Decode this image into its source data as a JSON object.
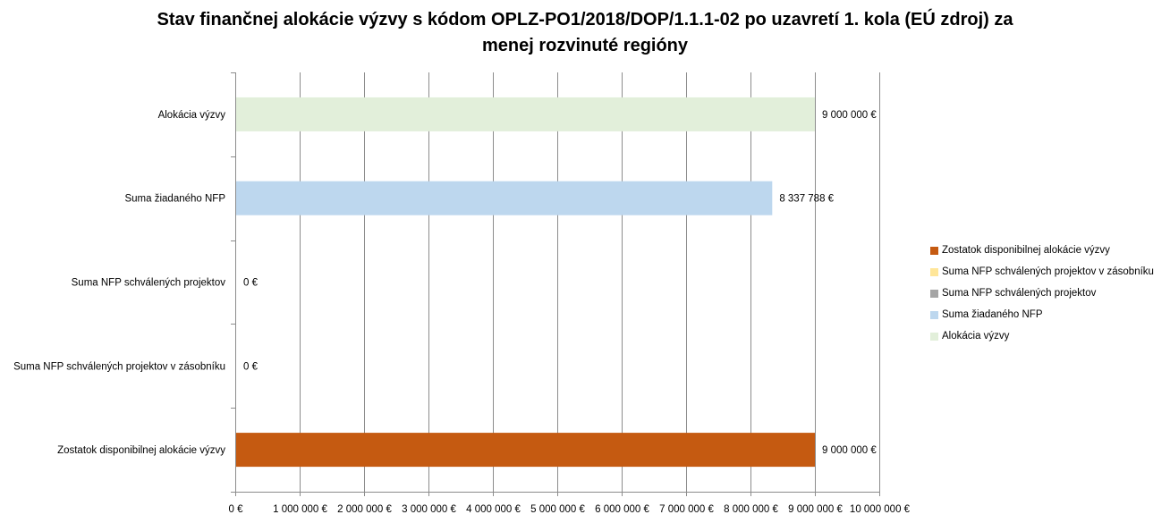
{
  "title_line1": "Stav finančnej alokácie výzvy s kódom OPLZ-PO1/2018/DOP/1.1.1-02 po uzavretí 1. kola (EÚ zdroj) za",
  "title_line2": "menej rozvinuté regióny",
  "chart_data": {
    "type": "bar",
    "orientation": "horizontal",
    "title": "Stav finančnej alokácie výzvy s kódom OPLZ-PO1/2018/DOP/1.1.1-02 po uzavretí 1. kola (EÚ zdroj) za menej rozvinuté regióny",
    "categories": [
      "Alokácia výzvy",
      "Suma žiadaného NFP",
      "Suma NFP schválených projektov",
      "Suma NFP schválených projektov v zásobníku",
      "Zostatok disponibilnej alokácie výzvy"
    ],
    "values": [
      9000000,
      8337788,
      0,
      0,
      9000000
    ],
    "value_labels": [
      "9 000 000 €",
      "8 337 788 €",
      "0 €",
      "0 €",
      "9 000 000 €"
    ],
    "colors": [
      "#E2EFDA",
      "#BDD7EE",
      "#A5A5A5",
      "#FFE699",
      "#C55A11"
    ],
    "xlim": [
      0,
      10000000
    ],
    "x_ticks": [
      0,
      1000000,
      2000000,
      3000000,
      4000000,
      5000000,
      6000000,
      7000000,
      8000000,
      9000000,
      10000000
    ],
    "x_tick_labels": [
      "0 €",
      "1 000 000 €",
      "2 000 000 €",
      "3 000 000 €",
      "4 000 000 €",
      "5 000 000 €",
      "6 000 000 €",
      "7 000 000 €",
      "8 000 000 €",
      "9 000 000 €",
      "10 000 000 €"
    ],
    "grid": "vertical",
    "legend_position": "right",
    "legend": [
      {
        "label": "Zostatok disponibilnej alokácie výzvy",
        "color": "#C55A11"
      },
      {
        "label": "Suma NFP schválených projektov v zásobníku",
        "color": "#FFE699"
      },
      {
        "label": "Suma NFP schválených projektov",
        "color": "#A5A5A5"
      },
      {
        "label": "Suma žiadaného NFP",
        "color": "#BDD7EE"
      },
      {
        "label": "Alokácia výzvy",
        "color": "#E2EFDA"
      }
    ]
  }
}
